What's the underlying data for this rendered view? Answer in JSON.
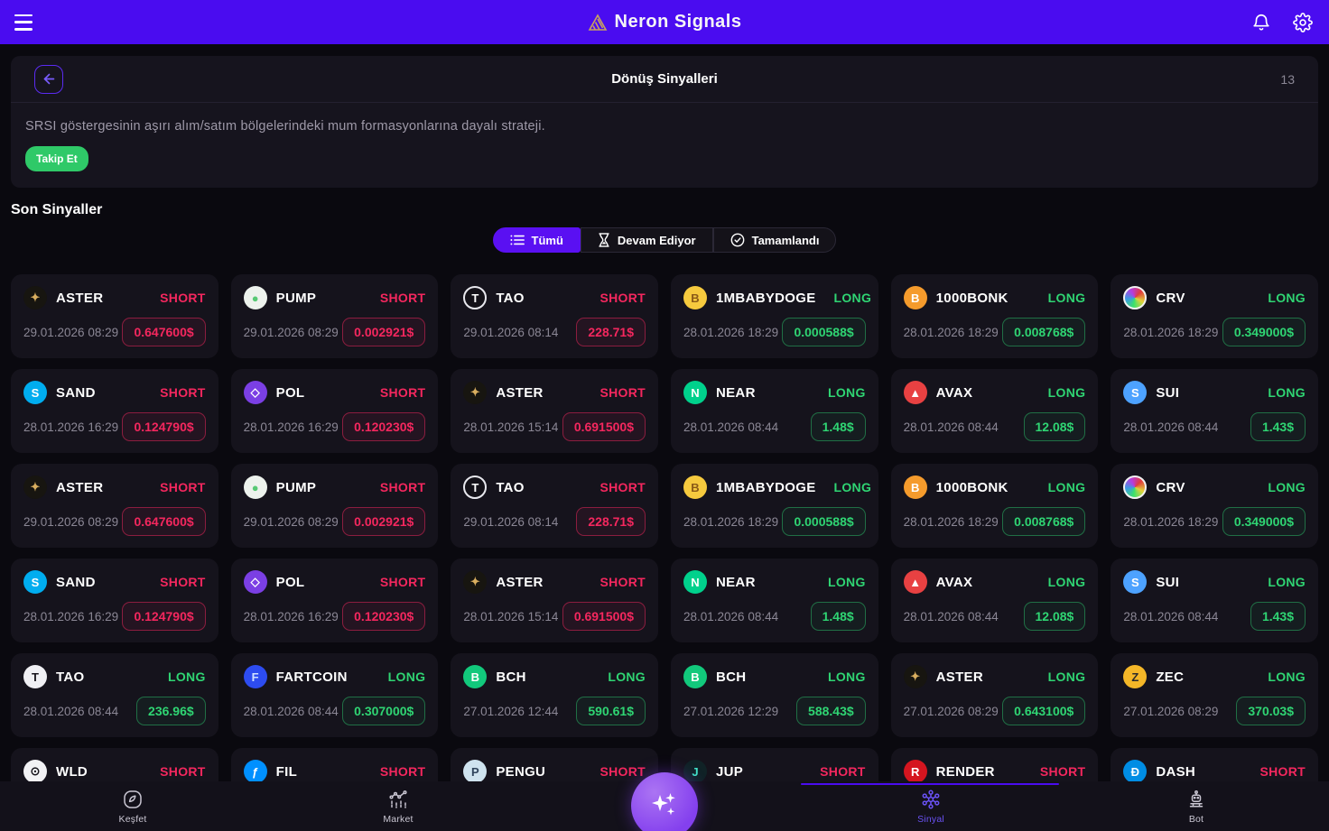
{
  "topbar": {
    "title": "Neron Signals"
  },
  "header": {
    "title": "Dönüş Sinyalleri",
    "count": "13",
    "description": "SRSI göstergesinin aşırı alım/satım bölgelerindeki mum formasyonlarına dayalı strateji.",
    "follow_label": "Takip Et"
  },
  "section": {
    "title": "Son Sinyaller"
  },
  "tabs": [
    {
      "label": "Tümü",
      "icon": "list-icon",
      "active": true
    },
    {
      "label": "Devam Ediyor",
      "icon": "hourglass-icon",
      "active": false
    },
    {
      "label": "Tamamlandı",
      "icon": "check-circle-icon",
      "active": false
    }
  ],
  "colors": {
    "topbar_purple": "#4A0CF0",
    "tab_active_purple": "#5A10F2",
    "long_green": "#2FD573",
    "short_red": "#F4275E",
    "follow_green": "#2FC968",
    "logo_gold": "#C8A35E"
  },
  "signals": [
    {
      "symbol": "ASTER",
      "date": "29.01.2026 08:29",
      "direction": "SHORT",
      "price": "0.647600$",
      "icon": {
        "name": "aster-coin-icon",
        "bg": "#171510",
        "fg": "#d9ae5f",
        "glyph": "✦"
      }
    },
    {
      "symbol": "PUMP",
      "date": "29.01.2026 08:29",
      "direction": "SHORT",
      "price": "0.002921$",
      "icon": {
        "name": "pump-coin-icon",
        "bg": "#edf2ed",
        "fg": "#57c974",
        "glyph": "●"
      }
    },
    {
      "symbol": "TAO",
      "date": "29.01.2026 08:14",
      "direction": "SHORT",
      "price": "228.71$",
      "icon": {
        "name": "tao-coin-icon",
        "bg": "#131118",
        "fg": "#ffffff",
        "glyph": "T",
        "ring": "#e8e8ee"
      }
    },
    {
      "symbol": "1MBABYDOGE",
      "date": "28.01.2026 18:29",
      "direction": "LONG",
      "price": "0.000588$",
      "icon": {
        "name": "1mbabydoge-coin-icon",
        "bg": "#f6ca3e",
        "fg": "#8a5a17",
        "glyph": "B"
      }
    },
    {
      "symbol": "1000BONK",
      "date": "28.01.2026 18:29",
      "direction": "LONG",
      "price": "0.008768$",
      "icon": {
        "name": "1000bonk-coin-icon",
        "bg": "#f59b2c",
        "fg": "#ffffff",
        "glyph": "B"
      }
    },
    {
      "symbol": "CRV",
      "date": "28.01.2026 18:29",
      "direction": "LONG",
      "price": "0.349000$",
      "icon": {
        "name": "crv-coin-icon",
        "bg": "conic-gradient(from 45deg, #e23b3b, #e2d23b, #3be26b, #3b9be2, #b53be2, #e23b3b)",
        "fg": "#ffffff",
        "glyph": "",
        "ring": "#f2f2f2"
      }
    },
    {
      "symbol": "SAND",
      "date": "28.01.2026 16:29",
      "direction": "SHORT",
      "price": "0.124790$",
      "icon": {
        "name": "sand-coin-icon",
        "bg": "#00adef",
        "fg": "#ffffff",
        "glyph": "S"
      }
    },
    {
      "symbol": "POL",
      "date": "28.01.2026 16:29",
      "direction": "SHORT",
      "price": "0.120230$",
      "icon": {
        "name": "pol-coin-icon",
        "bg": "#7b3fe4",
        "fg": "#ffffff",
        "glyph": "◇"
      }
    },
    {
      "symbol": "ASTER",
      "date": "28.01.2026 15:14",
      "direction": "SHORT",
      "price": "0.691500$",
      "icon": {
        "name": "aster-coin-icon",
        "bg": "#171510",
        "fg": "#d9ae5f",
        "glyph": "✦"
      }
    },
    {
      "symbol": "NEAR",
      "date": "28.01.2026 08:44",
      "direction": "LONG",
      "price": "1.48$",
      "icon": {
        "name": "near-coin-icon",
        "bg": "#00d18c",
        "fg": "#ffffff",
        "glyph": "N"
      }
    },
    {
      "symbol": "AVAX",
      "date": "28.01.2026 08:44",
      "direction": "LONG",
      "price": "12.08$",
      "icon": {
        "name": "avax-coin-icon",
        "bg": "#e84142",
        "fg": "#ffffff",
        "glyph": "▲"
      }
    },
    {
      "symbol": "SUI",
      "date": "28.01.2026 08:44",
      "direction": "LONG",
      "price": "1.43$",
      "icon": {
        "name": "sui-coin-icon",
        "bg": "#4da2ff",
        "fg": "#ffffff",
        "glyph": "S"
      }
    },
    {
      "symbol": "ASTER",
      "date": "29.01.2026 08:29",
      "direction": "SHORT",
      "price": "0.647600$",
      "icon": {
        "name": "aster-coin-icon",
        "bg": "#171510",
        "fg": "#d9ae5f",
        "glyph": "✦"
      }
    },
    {
      "symbol": "PUMP",
      "date": "29.01.2026 08:29",
      "direction": "SHORT",
      "price": "0.002921$",
      "icon": {
        "name": "pump-coin-icon",
        "bg": "#edf2ed",
        "fg": "#57c974",
        "glyph": "●"
      }
    },
    {
      "symbol": "TAO",
      "date": "29.01.2026 08:14",
      "direction": "SHORT",
      "price": "228.71$",
      "icon": {
        "name": "tao-coin-icon",
        "bg": "#131118",
        "fg": "#ffffff",
        "glyph": "T",
        "ring": "#e8e8ee"
      }
    },
    {
      "symbol": "1MBABYDOGE",
      "date": "28.01.2026 18:29",
      "direction": "LONG",
      "price": "0.000588$",
      "icon": {
        "name": "1mbabydoge-coin-icon",
        "bg": "#f6ca3e",
        "fg": "#8a5a17",
        "glyph": "B"
      }
    },
    {
      "symbol": "1000BONK",
      "date": "28.01.2026 18:29",
      "direction": "LONG",
      "price": "0.008768$",
      "icon": {
        "name": "1000bonk-coin-icon",
        "bg": "#f59b2c",
        "fg": "#ffffff",
        "glyph": "B"
      }
    },
    {
      "symbol": "CRV",
      "date": "28.01.2026 18:29",
      "direction": "LONG",
      "price": "0.349000$",
      "icon": {
        "name": "crv-coin-icon",
        "bg": "conic-gradient(from 45deg, #e23b3b, #e2d23b, #3be26b, #3b9be2, #b53be2, #e23b3b)",
        "fg": "#ffffff",
        "glyph": "",
        "ring": "#f2f2f2"
      }
    },
    {
      "symbol": "SAND",
      "date": "28.01.2026 16:29",
      "direction": "SHORT",
      "price": "0.124790$",
      "icon": {
        "name": "sand-coin-icon",
        "bg": "#00adef",
        "fg": "#ffffff",
        "glyph": "S"
      }
    },
    {
      "symbol": "POL",
      "date": "28.01.2026 16:29",
      "direction": "SHORT",
      "price": "0.120230$",
      "icon": {
        "name": "pol-coin-icon",
        "bg": "#7b3fe4",
        "fg": "#ffffff",
        "glyph": "◇"
      }
    },
    {
      "symbol": "ASTER",
      "date": "28.01.2026 15:14",
      "direction": "SHORT",
      "price": "0.691500$",
      "icon": {
        "name": "aster-coin-icon",
        "bg": "#171510",
        "fg": "#d9ae5f",
        "glyph": "✦"
      }
    },
    {
      "symbol": "NEAR",
      "date": "28.01.2026 08:44",
      "direction": "LONG",
      "price": "1.48$",
      "icon": {
        "name": "near-coin-icon",
        "bg": "#00d18c",
        "fg": "#ffffff",
        "glyph": "N"
      }
    },
    {
      "symbol": "AVAX",
      "date": "28.01.2026 08:44",
      "direction": "LONG",
      "price": "12.08$",
      "icon": {
        "name": "avax-coin-icon",
        "bg": "#e84142",
        "fg": "#ffffff",
        "glyph": "▲"
      }
    },
    {
      "symbol": "SUI",
      "date": "28.01.2026 08:44",
      "direction": "LONG",
      "price": "1.43$",
      "icon": {
        "name": "sui-coin-icon",
        "bg": "#4da2ff",
        "fg": "#ffffff",
        "glyph": "S"
      }
    },
    {
      "symbol": "TAO",
      "date": "28.01.2026 08:44",
      "direction": "LONG",
      "price": "236.96$",
      "icon": {
        "name": "tao-coin-icon",
        "bg": "#f0f0f4",
        "fg": "#17151d",
        "glyph": "T"
      }
    },
    {
      "symbol": "FARTCOIN",
      "date": "28.01.2026 08:44",
      "direction": "LONG",
      "price": "0.307000$",
      "icon": {
        "name": "fartcoin-coin-icon",
        "bg": "#2d4cf0",
        "fg": "#cfe0ff",
        "glyph": "F"
      }
    },
    {
      "symbol": "BCH",
      "date": "27.01.2026 12:44",
      "direction": "LONG",
      "price": "590.61$",
      "icon": {
        "name": "bch-coin-icon",
        "bg": "#12c97c",
        "fg": "#ffffff",
        "glyph": "B"
      }
    },
    {
      "symbol": "BCH",
      "date": "27.01.2026 12:29",
      "direction": "LONG",
      "price": "588.43$",
      "icon": {
        "name": "bch-coin-icon",
        "bg": "#12c97c",
        "fg": "#ffffff",
        "glyph": "B"
      }
    },
    {
      "symbol": "ASTER",
      "date": "27.01.2026 08:29",
      "direction": "LONG",
      "price": "0.643100$",
      "icon": {
        "name": "aster-coin-icon",
        "bg": "#171510",
        "fg": "#d9ae5f",
        "glyph": "✦"
      }
    },
    {
      "symbol": "ZEC",
      "date": "27.01.2026 08:29",
      "direction": "LONG",
      "price": "370.03$",
      "icon": {
        "name": "zec-coin-icon",
        "bg": "#f4b728",
        "fg": "#2b2b2b",
        "glyph": "Z"
      }
    },
    {
      "symbol": "WLD",
      "date": "",
      "direction": "SHORT",
      "price": "",
      "icon": {
        "name": "wld-coin-icon",
        "bg": "#f2f2f5",
        "fg": "#17151d",
        "glyph": "⊙"
      }
    },
    {
      "symbol": "FIL",
      "date": "",
      "direction": "SHORT",
      "price": "",
      "icon": {
        "name": "fil-coin-icon",
        "bg": "#0090ff",
        "fg": "#ffffff",
        "glyph": "ƒ"
      }
    },
    {
      "symbol": "PENGU",
      "date": "",
      "direction": "SHORT",
      "price": "",
      "icon": {
        "name": "pengu-coin-icon",
        "bg": "#cfe3ef",
        "fg": "#30445c",
        "glyph": "P"
      }
    },
    {
      "symbol": "JUP",
      "date": "",
      "direction": "SHORT",
      "price": "",
      "icon": {
        "name": "jup-coin-icon",
        "bg": "#102226",
        "fg": "#41e3c8",
        "glyph": "J"
      }
    },
    {
      "symbol": "RENDER",
      "date": "",
      "direction": "SHORT",
      "price": "",
      "icon": {
        "name": "render-coin-icon",
        "bg": "#d5151f",
        "fg": "#ffffff",
        "glyph": "R"
      }
    },
    {
      "symbol": "DASH",
      "date": "",
      "direction": "SHORT",
      "price": "",
      "icon": {
        "name": "dash-coin-icon",
        "bg": "#008de4",
        "fg": "#ffffff",
        "glyph": "Đ"
      }
    }
  ],
  "bottom_nav": [
    {
      "label": "Keşfet",
      "icon": "compass-icon",
      "active": false
    },
    {
      "label": "Market",
      "icon": "market-chart-icon",
      "active": false
    },
    {
      "label": "Sinyal",
      "icon": "molecule-icon",
      "active": true
    },
    {
      "label": "Bot",
      "icon": "robot-icon",
      "active": false
    }
  ]
}
